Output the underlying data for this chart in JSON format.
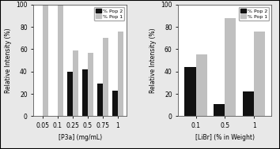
{
  "left": {
    "xlabel": "[P3a] (mg/mL)",
    "ylabel": "Relative Intensity (%)",
    "categories": [
      "0.05",
      "0.1",
      "0.25",
      "0.5",
      "0.75",
      "1"
    ],
    "pop2_values": [
      0,
      0,
      40,
      42,
      29,
      23
    ],
    "pop1_values": [
      100,
      100,
      59,
      57,
      70,
      76
    ],
    "ylim": [
      0,
      100
    ],
    "yticks": [
      0,
      20,
      40,
      60,
      80,
      100
    ],
    "legend_labels": [
      "% Pop 2",
      "% Pop 1"
    ],
    "bar_color_pop2": "#111111",
    "bar_color_pop1": "#c0c0c0"
  },
  "right": {
    "xlabel": "[LiBr] (% in Weight)",
    "ylabel": "Relative Intensity (%)",
    "categories": [
      "0.1",
      "0.5",
      "1"
    ],
    "pop2_values": [
      44,
      11,
      22
    ],
    "pop1_values": [
      55,
      88,
      76
    ],
    "ylim": [
      0,
      100
    ],
    "yticks": [
      0,
      20,
      40,
      60,
      80,
      100
    ],
    "legend_labels": [
      "% Pop 2",
      "% Pop 1"
    ],
    "bar_color_pop2": "#111111",
    "bar_color_pop1": "#c0c0c0"
  },
  "fig_facecolor": "#e8e8e8",
  "axes_facecolor": "#ffffff"
}
